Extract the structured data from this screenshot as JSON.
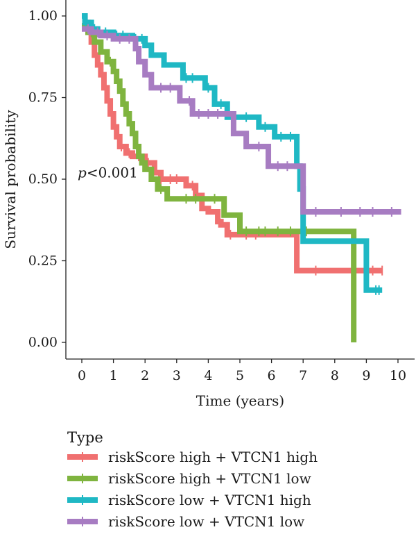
{
  "chart_data": {
    "type": "line",
    "subtype": "kaplan-meier step survival curves",
    "xlabel": "Time (years)",
    "ylabel": "Survival probability",
    "xlim": [
      0,
      10
    ],
    "ylim": [
      0,
      1
    ],
    "x_ticks": [
      "0",
      "1",
      "2",
      "3",
      "4",
      "5",
      "6",
      "7",
      "8",
      "9",
      "10"
    ],
    "y_ticks": [
      "0.00",
      "0.25",
      "0.50",
      "0.75",
      "1.00"
    ],
    "grid": false,
    "annotation": {
      "italic": "p",
      "rest": "<0.001",
      "x": 0.0,
      "y": 0.52
    },
    "legend": {
      "title": "Type",
      "placement": "bottom-left"
    },
    "series": [
      {
        "name": "riskScore high + VTCN1 high",
        "color": "#F07070",
        "steps": [
          [
            0,
            1.0
          ],
          [
            0.1,
            0.98
          ],
          [
            0.2,
            0.95
          ],
          [
            0.3,
            0.92
          ],
          [
            0.4,
            0.88
          ],
          [
            0.5,
            0.85
          ],
          [
            0.6,
            0.82
          ],
          [
            0.7,
            0.78
          ],
          [
            0.8,
            0.74
          ],
          [
            0.9,
            0.7
          ],
          [
            1.0,
            0.66
          ],
          [
            1.1,
            0.63
          ],
          [
            1.2,
            0.6
          ],
          [
            1.4,
            0.58
          ],
          [
            1.6,
            0.57
          ],
          [
            2.0,
            0.55
          ],
          [
            2.3,
            0.52
          ],
          [
            2.5,
            0.5
          ],
          [
            3.3,
            0.48
          ],
          [
            3.6,
            0.45
          ],
          [
            3.8,
            0.41
          ],
          [
            4.0,
            0.4
          ],
          [
            4.3,
            0.37
          ],
          [
            4.4,
            0.36
          ],
          [
            4.5,
            0.36
          ],
          [
            4.6,
            0.33
          ],
          [
            6.0,
            0.33
          ],
          [
            6.8,
            0.22
          ],
          [
            9.5,
            0.22
          ]
        ],
        "censors": [
          0.15,
          0.55,
          1.25,
          1.5,
          1.8,
          2.1,
          2.5,
          2.8,
          3.0,
          3.5,
          4.7,
          5.2,
          5.5,
          7.4,
          9.2,
          9.5
        ]
      },
      {
        "name": "riskScore high + VTCN1 low",
        "color": "#7FB43F",
        "steps": [
          [
            0,
            0.97
          ],
          [
            0.2,
            0.95
          ],
          [
            0.4,
            0.92
          ],
          [
            0.6,
            0.89
          ],
          [
            0.8,
            0.86
          ],
          [
            1.0,
            0.83
          ],
          [
            1.1,
            0.8
          ],
          [
            1.2,
            0.77
          ],
          [
            1.3,
            0.73
          ],
          [
            1.4,
            0.7
          ],
          [
            1.5,
            0.67
          ],
          [
            1.6,
            0.64
          ],
          [
            1.7,
            0.6
          ],
          [
            1.8,
            0.57
          ],
          [
            1.9,
            0.55
          ],
          [
            2.0,
            0.53
          ],
          [
            2.2,
            0.5
          ],
          [
            2.4,
            0.47
          ],
          [
            2.7,
            0.44
          ],
          [
            3.5,
            0.44
          ],
          [
            4.5,
            0.39
          ],
          [
            5.0,
            0.34
          ],
          [
            8.6,
            0.34
          ],
          [
            8.6,
            0.0
          ]
        ],
        "censors": [
          0.3,
          0.9,
          1.45,
          1.75,
          2.5,
          3.3,
          3.6,
          4.2,
          5.2,
          5.6,
          5.8,
          6.2,
          6.6,
          7.1
        ]
      },
      {
        "name": "riskScore low + VTCN1 high",
        "color": "#1FB8C4",
        "steps": [
          [
            0,
            1.0
          ],
          [
            0.1,
            0.98
          ],
          [
            0.3,
            0.96
          ],
          [
            0.5,
            0.95
          ],
          [
            1.0,
            0.94
          ],
          [
            1.6,
            0.93
          ],
          [
            2.0,
            0.91
          ],
          [
            2.2,
            0.88
          ],
          [
            2.6,
            0.85
          ],
          [
            3.2,
            0.81
          ],
          [
            3.9,
            0.78
          ],
          [
            4.2,
            0.73
          ],
          [
            4.6,
            0.69
          ],
          [
            5.6,
            0.66
          ],
          [
            6.1,
            0.63
          ],
          [
            6.8,
            0.54
          ],
          [
            6.9,
            0.47
          ],
          [
            7.0,
            0.31
          ],
          [
            9.0,
            0.16
          ],
          [
            9.5,
            0.16
          ]
        ],
        "censors": [
          0.12,
          0.4,
          0.75,
          1.1,
          1.3,
          1.7,
          1.9,
          3.3,
          3.5,
          4.0,
          4.4,
          5.2,
          5.8,
          6.3,
          6.6,
          9.3,
          9.4
        ]
      },
      {
        "name": "riskScore low + VTCN1 low",
        "color": "#A77CC2",
        "steps": [
          [
            0,
            0.96
          ],
          [
            0.3,
            0.95
          ],
          [
            0.6,
            0.94
          ],
          [
            1.0,
            0.93
          ],
          [
            1.7,
            0.9
          ],
          [
            1.8,
            0.86
          ],
          [
            2.0,
            0.82
          ],
          [
            2.2,
            0.78
          ],
          [
            3.1,
            0.74
          ],
          [
            3.5,
            0.7
          ],
          [
            4.8,
            0.64
          ],
          [
            5.2,
            0.6
          ],
          [
            5.8,
            0.6
          ],
          [
            5.9,
            0.54
          ],
          [
            7.0,
            0.4
          ],
          [
            10.1,
            0.4
          ]
        ],
        "censors": [
          0.2,
          0.5,
          0.8,
          1.2,
          1.5,
          2.5,
          2.8,
          3.4,
          3.7,
          4.0,
          4.3,
          5.6,
          6.2,
          6.5,
          7.4,
          8.2,
          8.8,
          9.2,
          9.8
        ]
      }
    ]
  }
}
